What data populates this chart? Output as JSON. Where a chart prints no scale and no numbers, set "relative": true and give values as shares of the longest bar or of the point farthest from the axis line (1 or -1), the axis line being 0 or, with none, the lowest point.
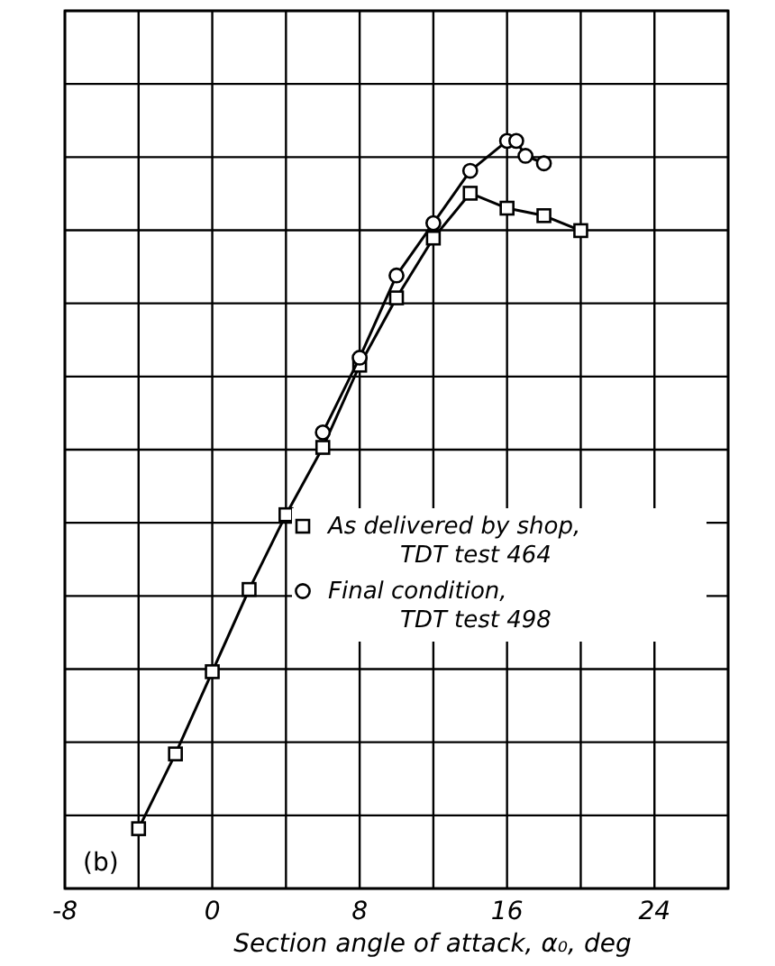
{
  "chart_data": {
    "type": "line",
    "relative": true,
    "xlabel": "Section angle of attack, α₀, deg",
    "xlim": [
      -8,
      28
    ],
    "xticks": [
      -8,
      {
        "value": -4,
        "label": null
      },
      0,
      {
        "value": 4,
        "label": null
      },
      8,
      {
        "value": 12,
        "label": null
      },
      16,
      {
        "value": 20,
        "label": null
      },
      24,
      {
        "value": 28,
        "label": null
      }
    ],
    "grid": true,
    "legend": "right",
    "annotations": [
      "(b)"
    ],
    "line_style": "solid",
    "series": [
      {
        "name": "As delivered by shop, TDT test 464",
        "color": "#000000",
        "marker": "square",
        "x": [
          -4,
          -2,
          0,
          2,
          4,
          6,
          8,
          10,
          12,
          14,
          16,
          18,
          20
        ],
        "values": [
          0.08,
          0.18,
          0.29,
          0.4,
          0.5,
          0.59,
          0.7,
          0.79,
          0.87,
          0.93,
          0.91,
          0.9,
          0.88
        ]
      },
      {
        "name": "Final condition, TDT test 498",
        "color": "#000000",
        "marker": "circle",
        "x": [
          6,
          8,
          10,
          12,
          14,
          16,
          16.5,
          17,
          18
        ],
        "values": [
          0.61,
          0.71,
          0.82,
          0.89,
          0.96,
          1.0,
          1.0,
          0.98,
          0.97
        ]
      }
    ]
  }
}
